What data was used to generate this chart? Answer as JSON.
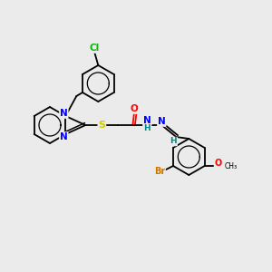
{
  "background_color": "#ebebeb",
  "bond_color": "#000000",
  "atom_colors": {
    "N": "#0000ff",
    "S": "#cccc00",
    "O": "#ff0000",
    "Cl": "#00bb00",
    "Br": "#cc7700",
    "H": "#008888",
    "C": "#000000"
  },
  "figsize": [
    3.0,
    3.0
  ],
  "dpi": 100,
  "lw": 1.3,
  "ring_r": 18,
  "fs": 7
}
